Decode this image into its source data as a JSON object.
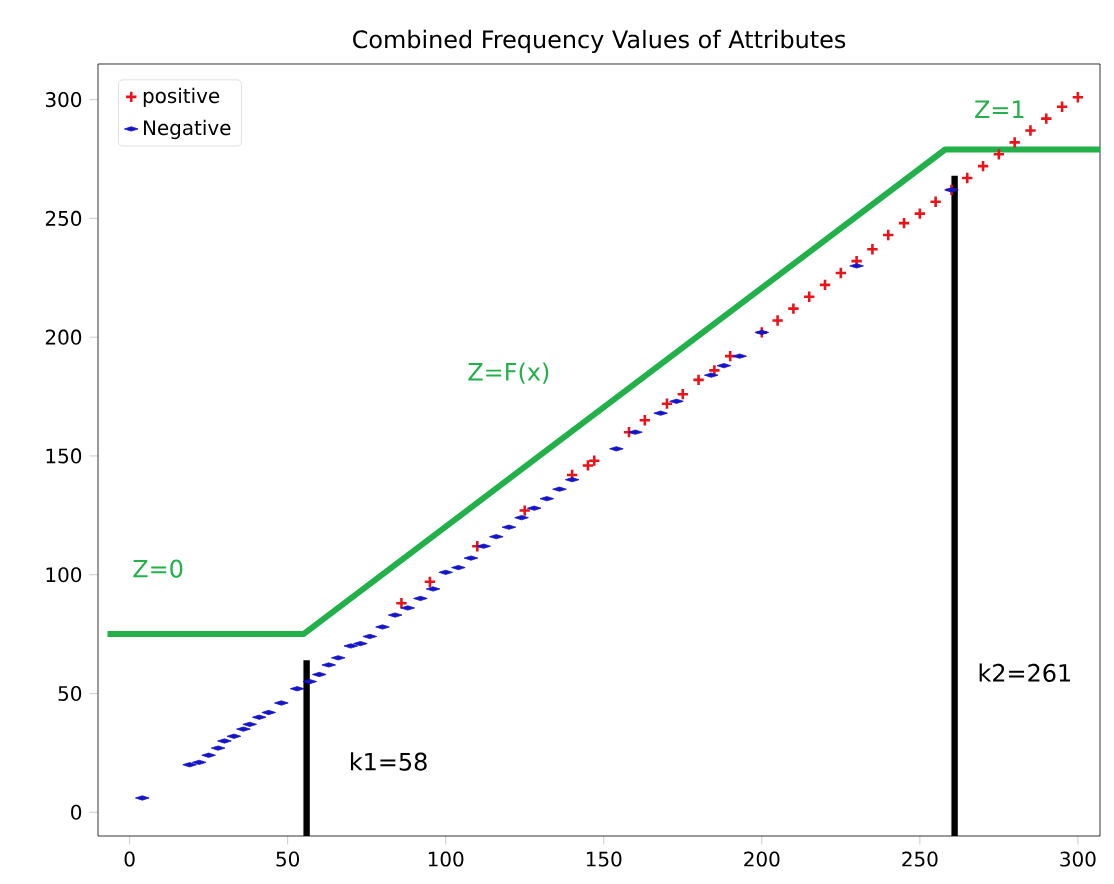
{
  "chart_data": {
    "type": "scatter",
    "title": "Combined Frequency Values of Attributes",
    "xlim": [
      -10,
      307
    ],
    "ylim": [
      -10,
      315
    ],
    "xticks": [
      0,
      50,
      100,
      150,
      200,
      250,
      300
    ],
    "yticks": [
      0,
      50,
      100,
      150,
      200,
      250,
      300
    ],
    "grid": false,
    "legend": "top left",
    "series": [
      {
        "name": "positive",
        "marker": "cross",
        "color": "#e8141a",
        "x": [
          86,
          95,
          110,
          125,
          140,
          145,
          147,
          158,
          163,
          170,
          175,
          180,
          185,
          190,
          200,
          205,
          210,
          215,
          220,
          225,
          230,
          235,
          240,
          245,
          250,
          255,
          260,
          265,
          270,
          275,
          280,
          285,
          290,
          295,
          300
        ],
        "values": [
          88,
          97,
          112,
          127,
          142,
          146,
          148,
          160,
          165,
          172,
          176,
          182,
          186,
          192,
          202,
          207,
          212,
          217,
          222,
          227,
          232,
          237,
          243,
          248,
          252,
          257,
          262,
          267,
          272,
          277,
          282,
          287,
          292,
          297,
          301
        ]
      },
      {
        "name": "Negative",
        "color": "#1414c8",
        "x": [
          4,
          19,
          22,
          25,
          28,
          30,
          33,
          36,
          38,
          41,
          44,
          48,
          53,
          57,
          60,
          63,
          66,
          70,
          73,
          76,
          80,
          84,
          88,
          92,
          96,
          100,
          104,
          108,
          112,
          116,
          120,
          124,
          128,
          132,
          136,
          140,
          154,
          160,
          168,
          173,
          184,
          188,
          193,
          200,
          230,
          260
        ],
        "values": [
          6,
          20,
          21,
          24,
          27,
          30,
          32,
          35,
          37,
          40,
          42,
          46,
          52,
          55,
          58,
          62,
          65,
          70,
          71,
          74,
          78,
          83,
          86,
          90,
          94,
          101,
          103,
          107,
          112,
          116,
          120,
          124,
          128,
          132,
          136,
          140,
          153,
          160,
          168,
          173,
          184,
          188,
          192,
          202,
          230,
          262
        ]
      },
      {
        "type": "line",
        "color": "#22b04b",
        "x": [
          -7,
          55,
          258,
          307
        ],
        "values": [
          75,
          75,
          279,
          279
        ]
      },
      {
        "type": "line",
        "color": "#000000",
        "x": [
          56,
          56
        ],
        "values": [
          -10,
          64
        ]
      },
      {
        "type": "line",
        "color": "#000000",
        "x": [
          261,
          261
        ],
        "values": [
          -10,
          268
        ]
      }
    ],
    "annotations": [
      "Z=0",
      "Z=F(x)",
      "Z=1",
      "k1=58",
      "k2=261"
    ]
  }
}
